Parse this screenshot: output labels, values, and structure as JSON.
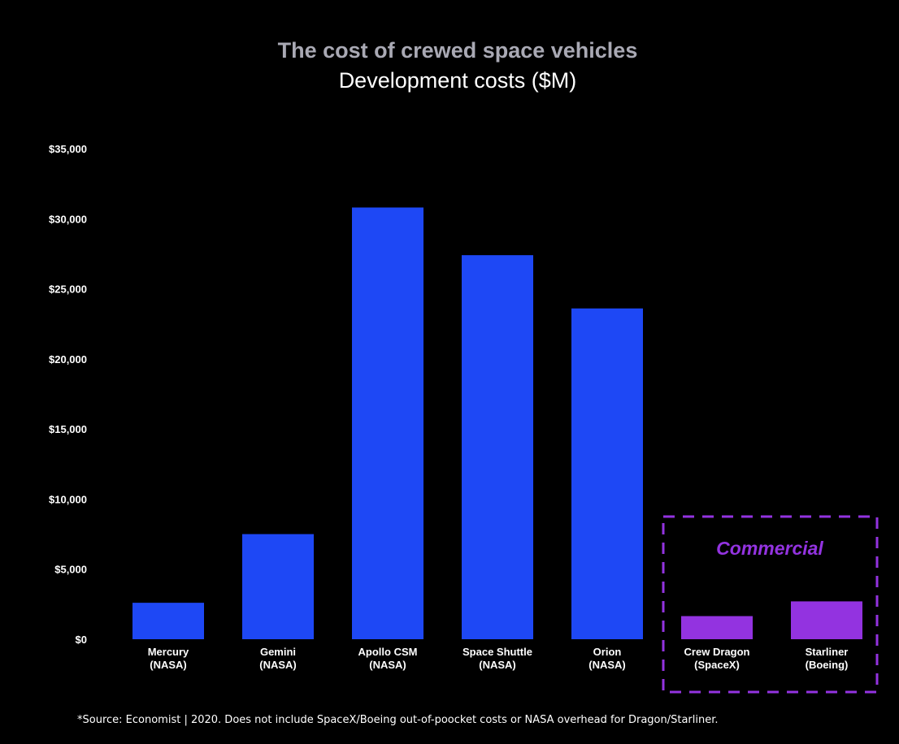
{
  "chart_data": {
    "type": "bar",
    "title": "The cost of crewed space vehicles",
    "subtitle": "Development costs ($M)",
    "xlabel": "",
    "ylabel": "",
    "categories": [
      [
        "Mercury",
        "(NASA)"
      ],
      [
        "Gemini",
        "(NASA)"
      ],
      [
        "Apollo CSM",
        "(NASA)"
      ],
      [
        "Space Shuttle",
        "(NASA)"
      ],
      [
        "Orion",
        "(NASA)"
      ],
      [
        "Crew Dragon",
        "(SpaceX)"
      ],
      [
        "Starliner",
        "(Boeing)"
      ]
    ],
    "values": [
      2600,
      7500,
      30800,
      27400,
      23600,
      1650,
      2700
    ],
    "bar_groups": [
      "NASA",
      "NASA",
      "NASA",
      "NASA",
      "NASA",
      "Commercial",
      "Commercial"
    ],
    "ylim": [
      0,
      35000
    ],
    "yticks": [
      0,
      5000,
      10000,
      15000,
      20000,
      25000,
      30000,
      35000
    ],
    "ytick_labels": [
      "$0",
      "$5,000",
      "$10,000",
      "$15,000",
      "$20,000",
      "$25,000",
      "$30,000",
      "$35,000"
    ],
    "grid": false,
    "annotation": "Commercial",
    "source": "*Source: Economist | 2020. Does not include SpaceX/Boeing out-of-poocket costs or NASA overhead for Dragon/Starliner."
  },
  "colors": {
    "background": "#000000",
    "title": "#a9a9b4",
    "subtitle": "#ffffff",
    "nasa_bar": "#1e48f5",
    "commercial_bar": "#9333e0",
    "commercial_box": "#9333e0",
    "tick_text": "#ffffff"
  }
}
